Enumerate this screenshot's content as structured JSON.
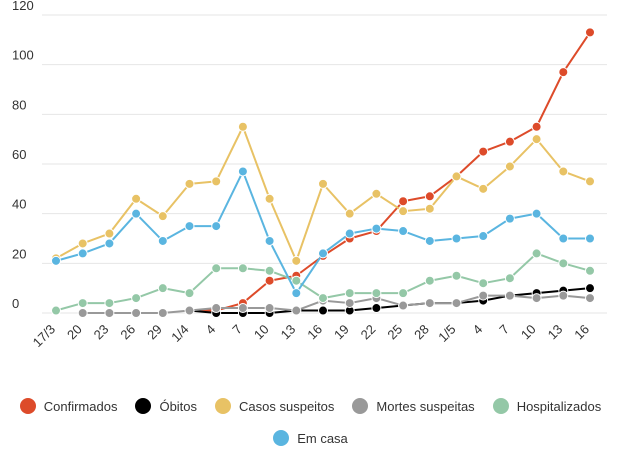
{
  "chart_data": {
    "type": "line",
    "title": "",
    "xlabel": "",
    "ylabel": "",
    "ylim": [
      0,
      120
    ],
    "yticks": [
      0,
      20,
      40,
      60,
      80,
      100,
      120
    ],
    "grid": true,
    "legend_position": "bottom",
    "categories": [
      "17/3",
      "",
      "20",
      "",
      "23",
      "",
      "26",
      "",
      "29",
      "",
      "1/4",
      "",
      "4",
      "",
      "7",
      "",
      "10",
      "",
      "13",
      "",
      "16",
      "",
      "19",
      "",
      "22",
      "",
      "25",
      "",
      "28",
      "",
      "1/5",
      "",
      "4",
      "",
      "7",
      "",
      "10",
      "",
      "13",
      "",
      "16"
    ],
    "series": [
      {
        "name": "Confirmados",
        "color": "#dd4b2a",
        "values": [
          null,
          null,
          null,
          null,
          null,
          null,
          null,
          null,
          null,
          null,
          1,
          null,
          1,
          null,
          4,
          null,
          13,
          null,
          15,
          null,
          23,
          null,
          30,
          null,
          33,
          null,
          45,
          null,
          47,
          null,
          55,
          null,
          65,
          null,
          69,
          null,
          75,
          null,
          97,
          null,
          113
        ]
      },
      {
        "name": "Óbitos",
        "color": "#000000",
        "values": [
          null,
          null,
          null,
          null,
          null,
          null,
          null,
          null,
          null,
          null,
          1,
          null,
          0,
          null,
          0,
          null,
          0,
          null,
          1,
          null,
          1,
          null,
          1,
          null,
          2,
          null,
          3,
          null,
          4,
          null,
          4,
          null,
          5,
          null,
          7,
          null,
          8,
          null,
          9,
          null,
          10
        ]
      },
      {
        "name": "Casos suspeitos",
        "color": "#e8c265",
        "values": [
          22,
          null,
          28,
          null,
          32,
          null,
          46,
          null,
          39,
          null,
          52,
          null,
          53,
          null,
          75,
          null,
          46,
          null,
          21,
          null,
          52,
          null,
          40,
          null,
          48,
          null,
          41,
          null,
          42,
          null,
          55,
          null,
          50,
          null,
          59,
          null,
          70,
          null,
          57,
          null,
          53
        ]
      },
      {
        "name": "Mortes suspeitas",
        "color": "#999999",
        "values": [
          null,
          null,
          0,
          null,
          0,
          null,
          0,
          null,
          0,
          null,
          1,
          null,
          2,
          null,
          2,
          null,
          2,
          null,
          1,
          null,
          5,
          null,
          4,
          null,
          6,
          null,
          3,
          null,
          4,
          null,
          4,
          null,
          7,
          null,
          7,
          null,
          6,
          null,
          7,
          null,
          6
        ]
      },
      {
        "name": "Hospitalizados",
        "color": "#94c8a7",
        "values": [
          1,
          null,
          4,
          null,
          4,
          null,
          6,
          null,
          10,
          null,
          8,
          null,
          18,
          null,
          18,
          null,
          17,
          null,
          13,
          null,
          6,
          null,
          8,
          null,
          8,
          null,
          8,
          null,
          13,
          null,
          15,
          null,
          12,
          null,
          14,
          null,
          24,
          null,
          20,
          null,
          17
        ]
      },
      {
        "name": "Em casa",
        "color": "#5ab5e0",
        "values": [
          21,
          null,
          24,
          null,
          28,
          null,
          40,
          null,
          29,
          null,
          35,
          null,
          35,
          null,
          57,
          null,
          29,
          null,
          8,
          null,
          24,
          null,
          32,
          null,
          34,
          null,
          33,
          null,
          29,
          null,
          30,
          null,
          31,
          null,
          38,
          null,
          40,
          null,
          30,
          null,
          30
        ]
      }
    ]
  },
  "legend": {
    "row1": [
      "Confirmados",
      "Óbitos",
      "Casos suspeitos",
      "Mortes suspeitas",
      "Hospitalizados"
    ],
    "row2": [
      "Em casa"
    ]
  }
}
